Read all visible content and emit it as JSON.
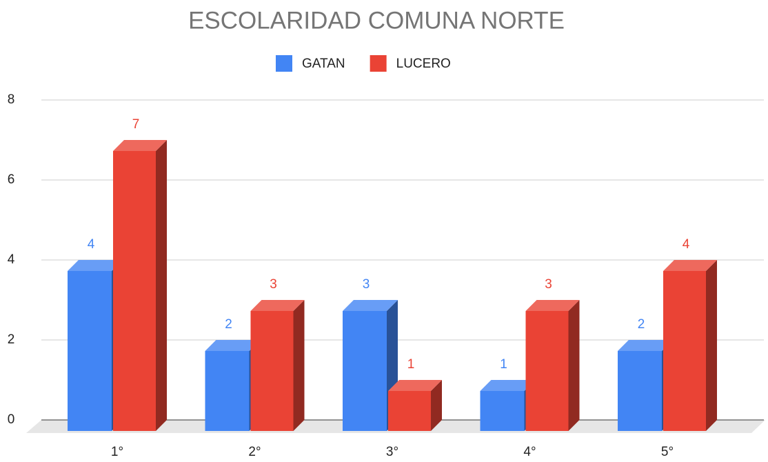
{
  "chart_data": {
    "type": "bar3d",
    "title": "ESCOLARIDAD COMUNA NORTE",
    "categories": [
      "1°",
      "2°",
      "3°",
      "4°",
      "5°"
    ],
    "series": [
      {
        "name": "GATAN",
        "color": "#4285f4",
        "values": [
          4,
          2,
          3,
          1,
          2
        ]
      },
      {
        "name": "LUCERO",
        "color": "#ea4335",
        "values": [
          7,
          3,
          1,
          3,
          4
        ]
      }
    ],
    "ylim": [
      0,
      8
    ],
    "yticks": [
      0,
      2,
      4,
      6,
      8
    ],
    "grid": true,
    "legend": "top"
  }
}
